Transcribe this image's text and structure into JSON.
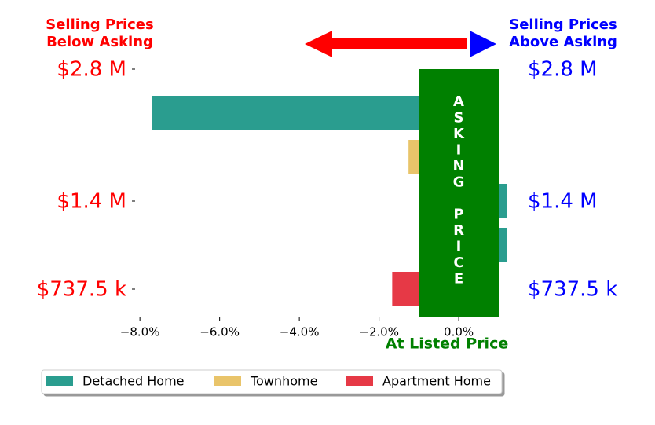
{
  "chart_data": {
    "type": "barh",
    "left_title": [
      "Selling Prices",
      "Below Asking"
    ],
    "right_title": [
      "Selling Prices",
      "Above Asking"
    ],
    "center_label": "At Listed Price",
    "annotation": [
      "ASKING",
      "PRICE"
    ],
    "categories": [
      "$2.8 M",
      null,
      null,
      "$1.4 M",
      null,
      "$737.5 k"
    ],
    "right_labels": [
      "$2.8 M",
      null,
      null,
      "$1.4 M",
      null,
      "$737.5 k"
    ],
    "series": [
      {
        "name": "Detached Home",
        "color": "#2a9d8f",
        "values": [
          null,
          -7.69,
          null,
          1.2,
          1.2,
          null
        ]
      },
      {
        "name": "Townhome",
        "color": "#e9c46a",
        "values": [
          null,
          null,
          -1.26,
          null,
          null,
          null
        ]
      },
      {
        "name": "Apartment Home",
        "color": "#e63946",
        "values": [
          null,
          null,
          null,
          null,
          null,
          -1.67
        ]
      }
    ],
    "xlim": [
      -8.2,
      1.2
    ],
    "xticks": [
      {
        "value": -8,
        "label": "−8.0%"
      },
      {
        "value": -6,
        "label": "−6.0%"
      },
      {
        "value": -4,
        "label": "−4.0%"
      },
      {
        "value": -2,
        "label": "−2.0%"
      },
      {
        "value": 0,
        "label": "0.0%"
      }
    ],
    "legend": "bottom-left"
  }
}
